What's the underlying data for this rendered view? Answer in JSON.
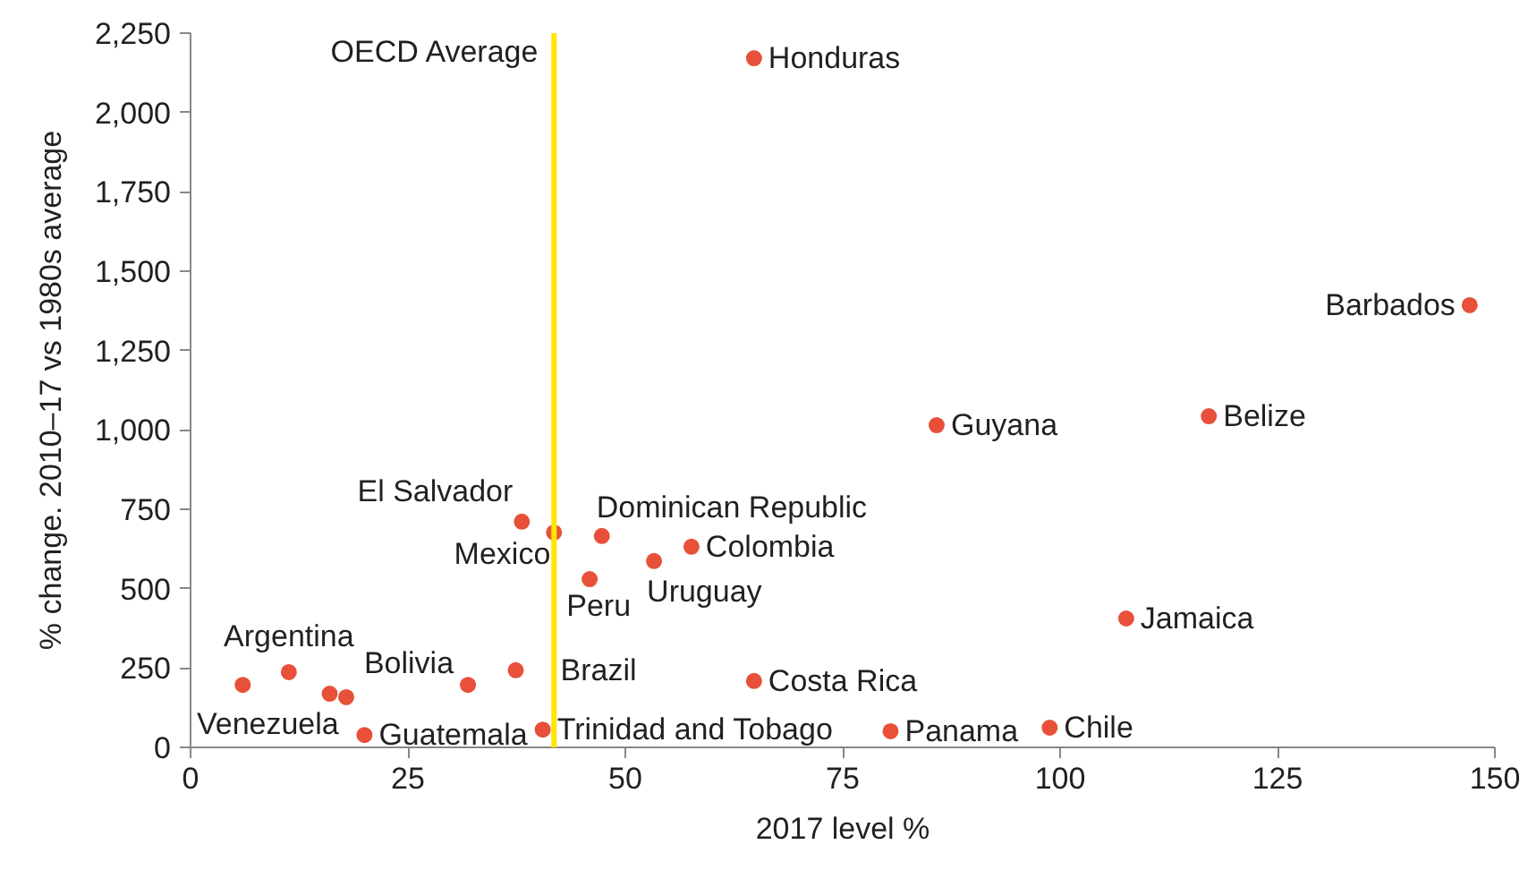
{
  "chart_data": {
    "type": "scatter",
    "xlabel": "2017 level %",
    "ylabel": "% change. 2010–17 vs 1980s average",
    "x": [
      6.0,
      11.3,
      16.0,
      17.9,
      20.0,
      31.9,
      37.4,
      38.1,
      41.8,
      40.5,
      45.9,
      47.3,
      53.3,
      57.6,
      64.8,
      64.8,
      80.5,
      85.8,
      98.8,
      107.6,
      117.1,
      147.1
    ],
    "series": [
      {
        "color": "#e8503a",
        "values": [
          197,
          237,
          169,
          158,
          39,
          197,
          243,
          711,
          677,
          56,
          530,
          666,
          587,
          632,
          2171,
          209,
          51,
          1015,
          62,
          406,
          1043,
          1393
        ]
      }
    ],
    "xlim": [
      0,
      150
    ],
    "xticks": [
      0,
      25,
      50,
      75,
      100,
      125,
      150
    ],
    "ylim": [
      0,
      2250
    ],
    "yticks": [
      0,
      250,
      500,
      750,
      {
        "value": 1000,
        "label": "1,000"
      },
      {
        "value": 1250,
        "label": "1,250"
      },
      {
        "value": 1500,
        "label": "1,500"
      },
      {
        "value": 1750,
        "label": "1,750"
      },
      {
        "value": 2000,
        "label": "2,000"
      },
      {
        "value": 2250,
        "label": "2,250"
      }
    ],
    "ref_lines": [
      {
        "axis": "x",
        "value": 41.8,
        "label": "OECD Average",
        "color": "#ffe500"
      }
    ],
    "annotations": [
      {
        "text": "Venezuela",
        "x": 6.0,
        "y": 197
      },
      {
        "text": "Argentina",
        "x": 11.3,
        "y": 237
      },
      {
        "text": "Guatemala",
        "x": 20.0,
        "y": 39
      },
      {
        "text": "Bolivia",
        "x": 31.9,
        "y": 197
      },
      {
        "text": "Brazil",
        "x": 37.4,
        "y": 243
      },
      {
        "text": "El Salvador",
        "x": 38.1,
        "y": 711
      },
      {
        "text": "Mexico",
        "x": 41.8,
        "y": 677
      },
      {
        "text": "Trinidad and Tobago",
        "x": 40.5,
        "y": 56
      },
      {
        "text": "Peru",
        "x": 45.9,
        "y": 530
      },
      {
        "text": "Dominican Republic",
        "x": 47.3,
        "y": 666
      },
      {
        "text": "Uruguay",
        "x": 53.3,
        "y": 587
      },
      {
        "text": "Colombia",
        "x": 57.6,
        "y": 632
      },
      {
        "text": "Honduras",
        "x": 64.8,
        "y": 2171
      },
      {
        "text": "Costa Rica",
        "x": 64.8,
        "y": 209
      },
      {
        "text": "Panama",
        "x": 80.5,
        "y": 51
      },
      {
        "text": "Guyana",
        "x": 85.8,
        "y": 1015
      },
      {
        "text": "Chile",
        "x": 98.8,
        "y": 62
      },
      {
        "text": "Jamaica",
        "x": 107.6,
        "y": 406
      },
      {
        "text": "Belize",
        "x": 117.1,
        "y": 1043
      },
      {
        "text": "Barbados",
        "x": 147.1,
        "y": 1393
      }
    ],
    "marker": "circle",
    "grid": false
  }
}
